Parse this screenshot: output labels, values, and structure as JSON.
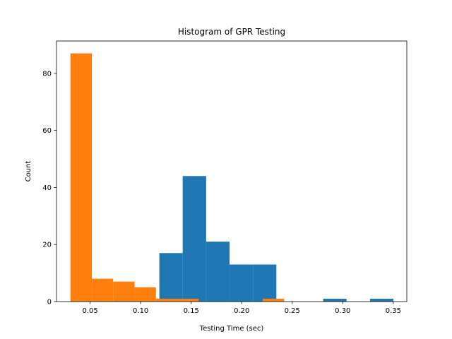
{
  "chart_data": {
    "type": "bar",
    "title": "Histogram of GPR Testing",
    "xlabel": "Testing Time (sec)",
    "ylabel": "Count",
    "xlim": [
      0.0167,
      0.3634
    ],
    "ylim": [
      0,
      91.35
    ],
    "x_ticks": [
      0.05,
      0.1,
      0.15,
      0.2,
      0.25,
      0.3,
      0.35
    ],
    "x_tick_labels": [
      "0.05",
      "0.10",
      "0.15",
      "0.20",
      "0.25",
      "0.30",
      "0.35"
    ],
    "y_ticks": [
      0,
      20,
      40,
      60,
      80
    ],
    "y_tick_labels": [
      "0",
      "20",
      "40",
      "60",
      "80"
    ],
    "grid": false,
    "legend": "none",
    "series": [
      {
        "color": "#1f77b4",
        "bins": [
          {
            "x0": 0.1185,
            "x1": 0.1416,
            "count": 17
          },
          {
            "x0": 0.1416,
            "x1": 0.1648,
            "count": 44
          },
          {
            "x0": 0.1648,
            "x1": 0.188,
            "count": 21
          },
          {
            "x0": 0.188,
            "x1": 0.2111,
            "count": 13
          },
          {
            "x0": 0.2111,
            "x1": 0.2343,
            "count": 13
          },
          {
            "x0": 0.2806,
            "x1": 0.3038,
            "count": 1
          },
          {
            "x0": 0.327,
            "x1": 0.3501,
            "count": 1
          }
        ]
      },
      {
        "color": "#ff7f0e",
        "bins": [
          {
            "x0": 0.0305,
            "x1": 0.0517,
            "count": 87
          },
          {
            "x0": 0.0517,
            "x1": 0.0728,
            "count": 8
          },
          {
            "x0": 0.0728,
            "x1": 0.094,
            "count": 7
          },
          {
            "x0": 0.094,
            "x1": 0.1151,
            "count": 5
          },
          {
            "x0": 0.1151,
            "x1": 0.1363,
            "count": 1
          },
          {
            "x0": 0.1363,
            "x1": 0.1574,
            "count": 1
          },
          {
            "x0": 0.2209,
            "x1": 0.242,
            "count": 1
          }
        ]
      }
    ]
  }
}
